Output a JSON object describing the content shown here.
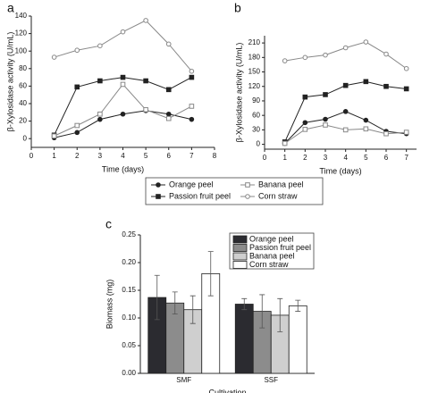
{
  "chart_data": [
    {
      "type": "line",
      "panel_label": "a",
      "xlabel": "Time (days)",
      "ylabel": "β-Xylosidase activity (U/mL)",
      "x": [
        1,
        2,
        3,
        4,
        5,
        6,
        7
      ],
      "xlim": [
        0,
        8
      ],
      "xticks": [
        0,
        1,
        2,
        3,
        4,
        5,
        6,
        7,
        8
      ],
      "ylim": [
        -10,
        140
      ],
      "yticks": [
        0,
        20,
        40,
        60,
        80,
        100,
        120,
        140
      ],
      "series": [
        {
          "name": "Orange peel",
          "color": "#222222",
          "marker": "filled-circle",
          "values": [
            1,
            7,
            22,
            28,
            32,
            28,
            22
          ]
        },
        {
          "name": "Passion fruit peel",
          "color": "#222222",
          "marker": "filled-square",
          "values": [
            4,
            59,
            66,
            70,
            66,
            56,
            70
          ]
        },
        {
          "name": "Banana peel",
          "color": "#888888",
          "marker": "open-square",
          "values": [
            3,
            15,
            28,
            62,
            33,
            23,
            37
          ]
        },
        {
          "name": "Corn straw",
          "color": "#888888",
          "marker": "open-circle",
          "values": [
            93,
            101,
            106,
            122,
            135,
            108,
            77
          ]
        }
      ]
    },
    {
      "type": "line",
      "panel_label": "b",
      "xlabel": "Time (days)",
      "ylabel": "β-Xylosidase activity (U/mL)",
      "x": [
        1,
        2,
        3,
        4,
        5,
        6,
        7
      ],
      "xlim": [
        0,
        7.5
      ],
      "xticks": [
        0,
        1,
        2,
        3,
        4,
        5,
        6,
        7
      ],
      "ylim": [
        -10,
        225
      ],
      "yticks": [
        0,
        30,
        60,
        90,
        120,
        150,
        180,
        210
      ],
      "series": [
        {
          "color": "#222222",
          "marker": "filled-circle",
          "values": [
            2,
            45,
            52,
            68,
            50,
            27,
            22
          ]
        },
        {
          "color": "#222222",
          "marker": "filled-square",
          "values": [
            5,
            98,
            103,
            122,
            130,
            120,
            115
          ]
        },
        {
          "color": "#888888",
          "marker": "open-square",
          "values": [
            2,
            31,
            40,
            30,
            32,
            22,
            25
          ]
        },
        {
          "color": "#888888",
          "marker": "open-circle",
          "values": [
            173,
            180,
            185,
            200,
            212,
            187,
            157
          ]
        }
      ]
    },
    {
      "type": "bar",
      "panel_label": "c",
      "xlabel": "Cultivation",
      "ylabel": "Biomass (mg)",
      "categories": [
        "SMF",
        "SSF"
      ],
      "ylim": [
        0,
        0.25
      ],
      "yticks": [
        {
          "value": 0,
          "label": "0.00"
        },
        0.05,
        {
          "value": 0.1,
          "label": "0.10"
        },
        0.15,
        {
          "value": 0.2,
          "label": "0.20"
        },
        0.25
      ],
      "series": [
        {
          "name": "Orange peel",
          "color": "#2b2b30",
          "values": [
            0.137,
            0.125
          ],
          "errors": [
            0.04,
            0.01
          ]
        },
        {
          "name": "Passion fruit peel",
          "color": "#8c8c8c",
          "values": [
            0.127,
            0.112
          ],
          "errors": [
            0.02,
            0.03
          ]
        },
        {
          "name": "Banana peel",
          "color": "#cfcfcf",
          "values": [
            0.115,
            0.105
          ],
          "errors": [
            0.025,
            0.03
          ]
        },
        {
          "name": "Corn straw",
          "color": "#ffffff",
          "values": [
            0.18,
            0.122
          ],
          "errors": [
            0.04,
            0.01
          ]
        }
      ]
    }
  ]
}
